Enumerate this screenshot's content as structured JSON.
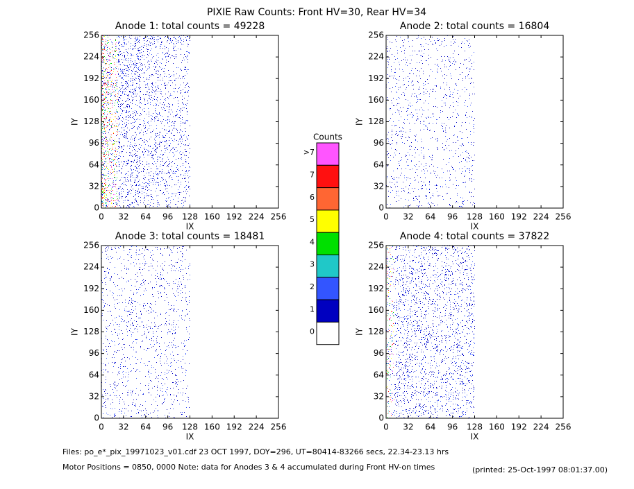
{
  "chart_data": {
    "type": "heatmap",
    "title": "PIXIE Raw Counts:  Front HV=30, Rear HV=34",
    "xlabel": "IX",
    "ylabel": "IY",
    "xlim": [
      0,
      256
    ],
    "ylim": [
      0,
      256
    ],
    "xticks": [
      0,
      32,
      64,
      96,
      128,
      160,
      192,
      224,
      256
    ],
    "yticks": [
      0,
      32,
      64,
      96,
      128,
      160,
      192,
      224,
      256
    ],
    "panels": [
      {
        "label": "Anode 1: total counts = ",
        "total_counts": 49228
      },
      {
        "label": "Anode 2: total counts = ",
        "total_counts": 16804
      },
      {
        "label": "Anode 3: total counts = ",
        "total_counts": 18481
      },
      {
        "label": "Anode 4: total counts = ",
        "total_counts": 37822
      }
    ],
    "colorbar": {
      "title": "Counts",
      "levels": [
        {
          "label": ">7",
          "color": "#ff55ff"
        },
        {
          "label": 7,
          "color": "#ff1010"
        },
        {
          "label": 6,
          "color": "#ff6633"
        },
        {
          "label": 5,
          "color": "#ffff00"
        },
        {
          "label": 4,
          "color": "#00e000"
        },
        {
          "label": 3,
          "color": "#20c8c8"
        },
        {
          "label": 2,
          "color": "#3355ff"
        },
        {
          "label": 1,
          "color": "#0000c0"
        },
        {
          "label": 0,
          "color": "#ffffff"
        }
      ]
    },
    "footer": {
      "files": "Files: po_e*_pix_19971023_v01.cdf    23 OCT 1997, DOY=296, UT=80414-83266 secs, 22.34-23.13 hrs",
      "motor": "Motor Positions = 0850, 0000    Note: data for Anodes 3 & 4 accumulated during Front HV-on times",
      "printed": "(printed: 25-Oct-1997 08:01:37.00)"
    }
  }
}
